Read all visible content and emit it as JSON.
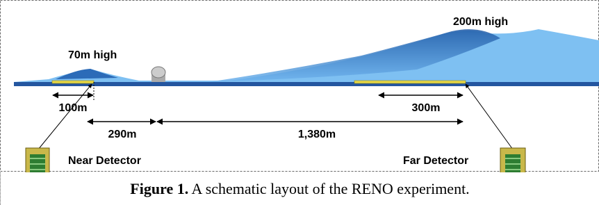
{
  "figure": {
    "labels": {
      "near_height": "70m high",
      "far_height": "200m high",
      "near_distance": "100m",
      "gap_distance": "290m",
      "baseline_distance": "1,380m",
      "far_distance": "300m",
      "near_detector": "Near Detector",
      "far_detector": "Far Detector"
    },
    "caption": {
      "label": "Figure 1.",
      "text": "A schematic layout of the RENO experiment."
    }
  }
}
